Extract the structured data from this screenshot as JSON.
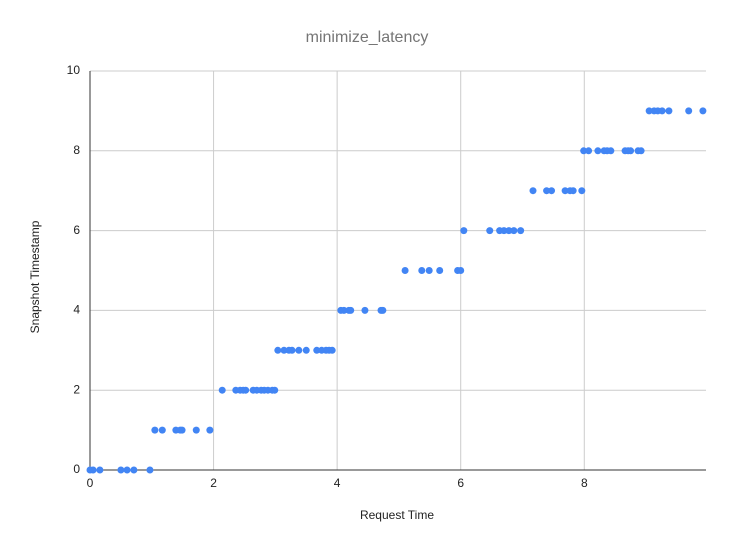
{
  "chart_data": {
    "type": "scatter",
    "title": "minimize_latency",
    "x_label": "Request Time",
    "y_label": "Snapshot Timestamp",
    "x": [
      0,
      0.05,
      0.16,
      0.5,
      0.6,
      0.71,
      0.97,
      1.05,
      1.17,
      1.39,
      1.46,
      1.49,
      1.72,
      1.94,
      2.14,
      2.36,
      2.43,
      2.48,
      2.52,
      2.64,
      2.7,
      2.77,
      2.82,
      2.88,
      2.95,
      2.99,
      3.04,
      3.14,
      3.22,
      3.27,
      3.38,
      3.5,
      3.67,
      3.75,
      3.82,
      3.87,
      3.92,
      4.06,
      4.11,
      4.19,
      4.22,
      4.45,
      4.71,
      4.74,
      5.1,
      5.37,
      5.49,
      5.66,
      5.95,
      6.0,
      6.05,
      6.47,
      6.63,
      6.7,
      6.78,
      6.86,
      6.97,
      7.17,
      7.39,
      7.47,
      7.69,
      7.77,
      7.82,
      7.96,
      7.99,
      8.07,
      8.22,
      8.32,
      8.37,
      8.43,
      8.66,
      8.71,
      8.75,
      8.87,
      8.92,
      9.05,
      9.13,
      9.19,
      9.26,
      9.37,
      9.69,
      9.92
    ],
    "series": [
      {
        "color": "#4285f4",
        "values": [
          0,
          0,
          0,
          0,
          0,
          0,
          0,
          1,
          1,
          1,
          1,
          1,
          1,
          1,
          2,
          2,
          2,
          2,
          2,
          2,
          2,
          2,
          2,
          2,
          2,
          2,
          3,
          3,
          3,
          3,
          3,
          3,
          3,
          3,
          3,
          3,
          3,
          4,
          4,
          4,
          4,
          4,
          4,
          4,
          5,
          5,
          5,
          5,
          5,
          5,
          6,
          6,
          6,
          6,
          6,
          6,
          6,
          7,
          7,
          7,
          7,
          7,
          7,
          7,
          8,
          8,
          8,
          8,
          8,
          8,
          8,
          8,
          8,
          8,
          8,
          9,
          9,
          9,
          9,
          9,
          9,
          9
        ]
      }
    ],
    "xlim": [
      0,
      9.97
    ],
    "ylim": [
      0,
      10
    ],
    "xticks": [
      0,
      2,
      4,
      6,
      8
    ],
    "yticks": [
      0,
      2,
      4,
      6,
      8,
      10
    ],
    "grid": true
  }
}
